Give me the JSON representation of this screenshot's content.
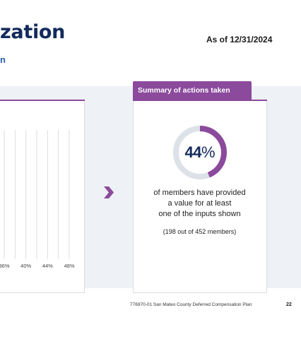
{
  "header": {
    "title": "zation",
    "subtitle": "n",
    "as_of": "As of 12/31/2024"
  },
  "summary": {
    "tab_label": "Summary of actions taken",
    "percent_value": "44",
    "percent_sign": "%",
    "percent_fraction": 0.44,
    "description_lines": [
      "of members have provided",
      "a value for at least",
      "one of the inputs shown"
    ],
    "member_count": "(198 out of 452 members)"
  },
  "colors": {
    "accent_purple": "#8b4a9c",
    "navy": "#132a5c",
    "donut_track": "#dde2e8"
  },
  "chart_data": {
    "type": "bar",
    "orientation": "horizontal",
    "tick_labels": [
      "36%",
      "40%",
      "44%",
      "48%"
    ],
    "x_ticks": [
      36,
      40,
      44,
      48
    ],
    "grid": true
  },
  "footer": {
    "doc_ref": "776970-01 San Mateo County Deferred Compensation Plan",
    "page_number": "22"
  }
}
